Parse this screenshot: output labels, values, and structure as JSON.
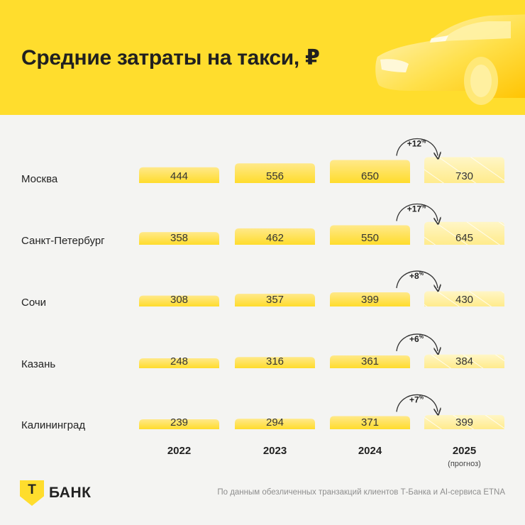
{
  "header": {
    "title": "Средние затраты на такси, ₽"
  },
  "colors": {
    "brand_yellow": "#ffdd2d",
    "bar_solid": "#ffe55c",
    "bar_forecast": "#fff3b0",
    "background": "#f4f4f2"
  },
  "chart_data": {
    "type": "bar",
    "title": "Средние затраты на такси, ₽",
    "categories": [
      "Москва",
      "Санкт-Петербург",
      "Сочи",
      "Казань",
      "Калининград"
    ],
    "years": [
      "2022",
      "2023",
      "2024",
      "2025"
    ],
    "forecast_note": "(прогноз)",
    "series": [
      {
        "name": "2022",
        "values": [
          444,
          358,
          308,
          248,
          239
        ]
      },
      {
        "name": "2023",
        "values": [
          556,
          462,
          357,
          316,
          294
        ]
      },
      {
        "name": "2024",
        "values": [
          650,
          550,
          399,
          361,
          371
        ]
      },
      {
        "name": "2025",
        "values": [
          730,
          645,
          430,
          384,
          399
        ]
      }
    ],
    "growth": [
      {
        "value": "+12",
        "unit": "%"
      },
      {
        "value": "+17",
        "unit": "%"
      },
      {
        "value": "+8",
        "unit": "%"
      },
      {
        "value": "+6",
        "unit": "%"
      },
      {
        "value": "+7",
        "unit": "%"
      }
    ]
  },
  "footer": {
    "logo_letter": "Т",
    "logo_text": "БАНК",
    "source": "По данным обезличенных транзакций клиентов Т-Банка и AI-сервиса ETNA"
  }
}
